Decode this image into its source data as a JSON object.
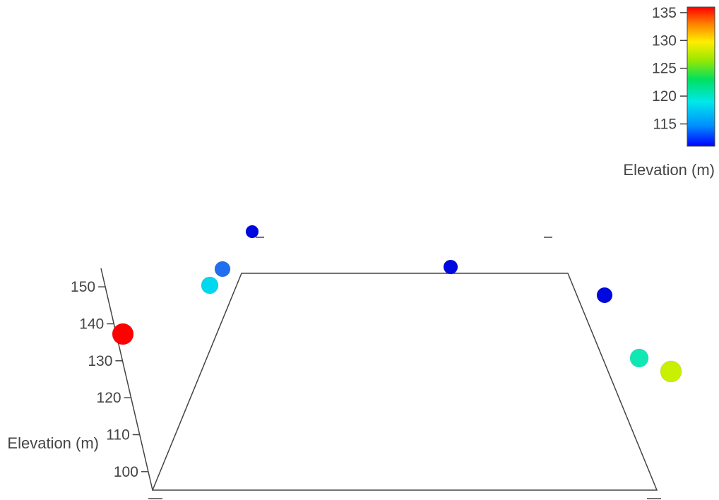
{
  "chart_data": {
    "type": "scatter",
    "title": "",
    "zlabel": "Elevation (m)",
    "zlim": [
      95,
      155
    ],
    "z_ticks": [
      100,
      110,
      120,
      130,
      140,
      150
    ],
    "colorbar": {
      "title": "Elevation (m)",
      "range": [
        111,
        136
      ],
      "ticks": [
        115,
        120,
        125,
        130,
        135
      ],
      "colorscale": "rainbow",
      "placement": "top-right"
    },
    "points": [
      {
        "z": 138,
        "color_value": 136,
        "color": "#ff0000"
      },
      {
        "z": 150,
        "color_value": 117,
        "color": "#00d8f0"
      },
      {
        "z": 154,
        "color_value": 113,
        "color": "#1f6ff0"
      },
      {
        "z": 159,
        "color_value": 111,
        "color": "#0008e0"
      },
      {
        "z": 154,
        "color_value": 111,
        "color": "#0008e0"
      },
      {
        "z": 148,
        "color_value": 111,
        "color": "#0008e0"
      },
      {
        "z": 132,
        "color_value": 121,
        "color": "#10e8b4"
      },
      {
        "z": 129,
        "color_value": 129,
        "color": "#c8f000"
      }
    ],
    "grid": false,
    "legend": false
  }
}
